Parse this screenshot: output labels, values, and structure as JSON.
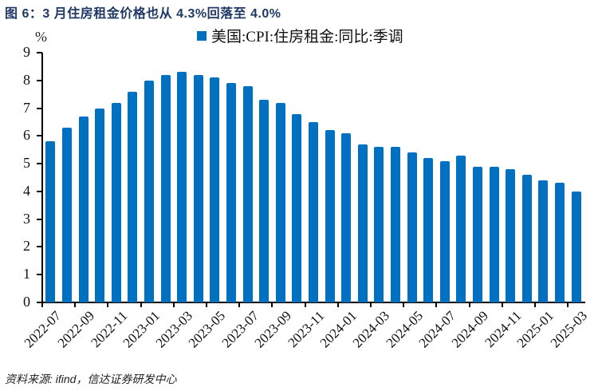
{
  "title": "图 6：3 月住房租金价格也从 4.3%回落至 4.0%",
  "unit": "%",
  "source": "资料来源: ifind，信达证券研发中心",
  "colors": {
    "bar": "#0070c0",
    "title": "#1f3864"
  },
  "chart_data": {
    "type": "bar",
    "title": "3 月住房租金价格也从 4.3%回落至 4.0%",
    "xlabel": "",
    "ylabel": "%",
    "ylim": [
      0,
      9
    ],
    "yticks": [
      0,
      1,
      2,
      3,
      4,
      5,
      6,
      7,
      8,
      9
    ],
    "grid": false,
    "legend_position": "top",
    "x_tick_labels": [
      "2022-07",
      "2022-09",
      "2022-11",
      "2023-01",
      "2023-03",
      "2023-05",
      "2023-07",
      "2023-09",
      "2023-11",
      "2024-01",
      "2024-03",
      "2024-05",
      "2024-07",
      "2024-09",
      "2024-11",
      "2025-01",
      "2025-03"
    ],
    "categories": [
      "2022-07",
      "2022-08",
      "2022-09",
      "2022-10",
      "2022-11",
      "2022-12",
      "2023-01",
      "2023-02",
      "2023-03",
      "2023-04",
      "2023-05",
      "2023-06",
      "2023-07",
      "2023-08",
      "2023-09",
      "2023-10",
      "2023-11",
      "2023-12",
      "2024-01",
      "2024-02",
      "2024-03",
      "2024-04",
      "2024-05",
      "2024-06",
      "2024-07",
      "2024-08",
      "2024-09",
      "2024-10",
      "2024-11",
      "2024-12",
      "2025-01",
      "2025-02",
      "2025-03"
    ],
    "series": [
      {
        "name": "美国:CPI:住房租金:同比:季调",
        "values": [
          5.8,
          6.3,
          6.7,
          7.0,
          7.2,
          7.6,
          8.0,
          8.2,
          8.3,
          8.2,
          8.1,
          7.9,
          7.8,
          7.3,
          7.2,
          6.8,
          6.5,
          6.2,
          6.1,
          5.7,
          5.6,
          5.6,
          5.4,
          5.2,
          5.1,
          5.3,
          4.9,
          4.9,
          4.8,
          4.6,
          4.4,
          4.3,
          4.0
        ]
      }
    ]
  }
}
